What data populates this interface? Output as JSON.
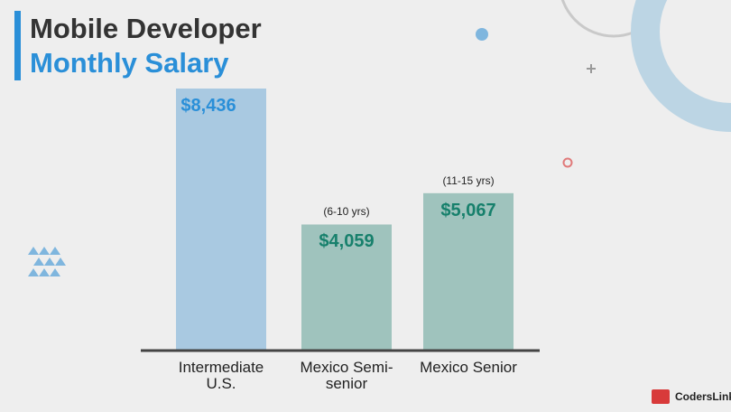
{
  "chart_data": {
    "type": "bar",
    "title": "Mobile Developer",
    "subtitle": "Monthly Salary",
    "categories": [
      "Intermediate U.S.",
      "Mexico Semi-senior",
      "Mexico Senior"
    ],
    "values": [
      8436,
      4059,
      5067
    ],
    "value_labels": [
      "$8,436",
      "$4,059",
      "$5,067"
    ],
    "annotations": [
      null,
      "(6-10 yrs)",
      "(11-15 yrs)"
    ],
    "colors": [
      "#a9c9e1",
      "#9fc3bd",
      "#9fc3bd"
    ],
    "label_colors": [
      "#2a8fd8",
      "#17806c",
      "#17806c"
    ]
  },
  "brand": "CodersLink"
}
